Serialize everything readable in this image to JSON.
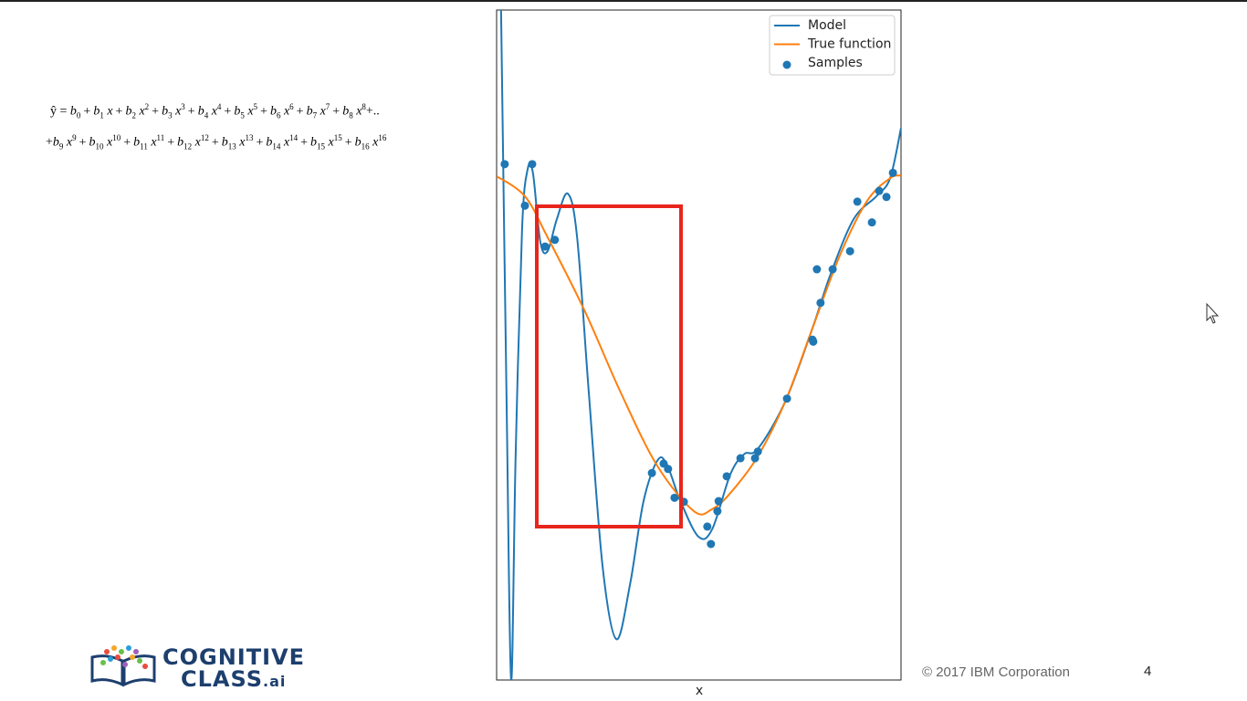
{
  "equation": {
    "lhs": "ŷ =",
    "coef": "b",
    "var": "x",
    "plus": "+",
    "line1_end": "+..",
    "line1": [
      {
        "sub": "0"
      },
      {
        "sub": "1"
      },
      {
        "sub": "2",
        "sup": "2"
      },
      {
        "sub": "3",
        "sup": "3"
      },
      {
        "sub": "4",
        "sup": "4"
      },
      {
        "sub": "5",
        "sup": "5"
      },
      {
        "sub": "6",
        "sup": "6"
      },
      {
        "sub": "7",
        "sup": "7"
      },
      {
        "sub": "8",
        "sup": "8"
      }
    ],
    "line2": [
      {
        "sub": "9",
        "sup": "9"
      },
      {
        "sub": "10",
        "sup": "10"
      },
      {
        "sub": "11",
        "sup": "11"
      },
      {
        "sub": "12",
        "sup": "12"
      },
      {
        "sub": "13",
        "sup": "13"
      },
      {
        "sub": "14",
        "sup": "14"
      },
      {
        "sub": "15",
        "sup": "15"
      },
      {
        "sub": "16",
        "sup": "16"
      }
    ]
  },
  "chart_data": {
    "type": "line",
    "x_label": "x",
    "xlim": [
      0,
      1
    ],
    "ylim": [
      0,
      1
    ],
    "series": [
      {
        "name": "Model",
        "mark": "line",
        "color": "#1f77b4",
        "x": [
          0.011,
          0.025,
          0.036,
          0.047,
          0.063,
          0.077,
          0.09,
          0.108,
          0.126,
          0.149,
          0.176,
          0.199,
          0.228,
          0.262,
          0.296,
          0.33,
          0.363,
          0.397,
          0.42,
          0.454,
          0.499,
          0.533,
          0.578,
          0.612,
          0.646,
          0.714,
          0.781,
          0.826,
          0.883,
          0.939,
          0.973,
          1
        ],
        "values": [
          1.0,
          0.402,
          0,
          0.334,
          0.674,
          0.763,
          0.756,
          0.654,
          0.64,
          0.688,
          0.726,
          0.661,
          0.429,
          0.17,
          0.061,
          0.143,
          0.266,
          0.327,
          0.323,
          0.268,
          0.214,
          0.225,
          0.307,
          0.337,
          0.345,
          0.416,
          0.525,
          0.606,
          0.688,
          0.722,
          0.749,
          0.824
        ]
      },
      {
        "name": "True function",
        "mark": "line",
        "color": "#ff7f0e",
        "x": [
          0,
          0.07,
          0.126,
          0.217,
          0.307,
          0.397,
          0.488,
          0.533,
          0.578,
          0.646,
          0.714,
          0.781,
          0.849,
          0.916,
          0.973,
          1
        ],
        "values": [
          0.752,
          0.722,
          0.661,
          0.552,
          0.429,
          0.32,
          0.252,
          0.255,
          0.279,
          0.334,
          0.416,
          0.525,
          0.634,
          0.715,
          0.749,
          0.753
        ]
      },
      {
        "name": "Samples",
        "mark": "scatter",
        "color": "#1f77b4",
        "x": [
          0.02,
          0.07,
          0.088,
          0.12,
          0.144,
          0.384,
          0.413,
          0.424,
          0.44,
          0.463,
          0.521,
          0.53,
          0.546,
          0.549,
          0.569,
          0.603,
          0.639,
          0.646,
          0.718,
          0.781,
          0.783,
          0.792,
          0.801,
          0.831,
          0.874,
          0.892,
          0.928,
          0.946,
          0.964,
          0.98
        ],
        "values": [
          0.77,
          0.708,
          0.77,
          0.647,
          0.657,
          0.309,
          0.323,
          0.315,
          0.272,
          0.266,
          0.229,
          0.203,
          0.252,
          0.267,
          0.304,
          0.331,
          0.331,
          0.341,
          0.42,
          0.508,
          0.505,
          0.613,
          0.563,
          0.613,
          0.64,
          0.714,
          0.683,
          0.73,
          0.721,
          0.757
        ]
      }
    ]
  },
  "logo": {
    "line1": "COGNITIVE",
    "line2": "CLASS",
    "suffix": ".ai"
  },
  "footer": {
    "copyright": "© 2017 IBM Corporation",
    "page": "4"
  }
}
